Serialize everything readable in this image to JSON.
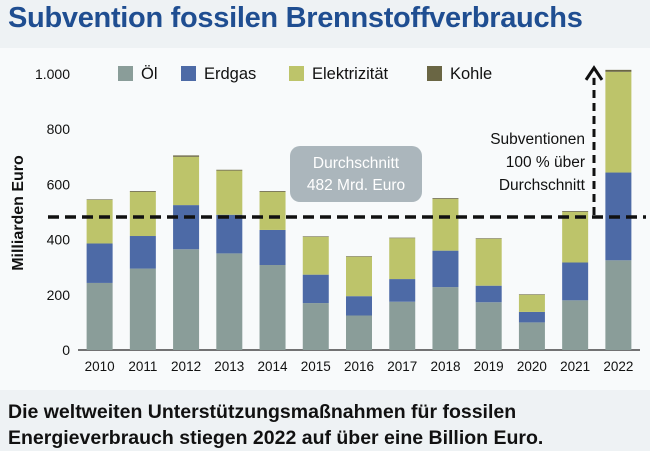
{
  "title": "Subvention fossilen Brennstoffverbrauchs",
  "caption": {
    "line1": "Die weltweiten Unterstützungsmaßnahmen für fossilen",
    "line2": "Energieverbrauch stiegen 2022 auf über eine Billion Euro."
  },
  "chart_data": {
    "type": "bar",
    "stacked": true,
    "ylabel": "Milliarden Euro",
    "ylim": [
      0,
      1000
    ],
    "yticks": [
      0,
      200,
      400,
      600,
      800,
      1000
    ],
    "ytick_labels": [
      "0",
      "200",
      "400",
      "600",
      "800",
      "1.000"
    ],
    "categories": [
      "2010",
      "2011",
      "2012",
      "2013",
      "2014",
      "2015",
      "2016",
      "2017",
      "2018",
      "2019",
      "2020",
      "2021",
      "2022"
    ],
    "series": [
      {
        "name": "Öl",
        "color": "#8a9d99",
        "values": [
          243,
          295,
          365,
          350,
          308,
          170,
          125,
          175,
          228,
          173,
          100,
          180,
          325
        ]
      },
      {
        "name": "Erdgas",
        "color": "#4d6aa6",
        "values": [
          143,
          118,
          160,
          140,
          127,
          103,
          70,
          82,
          132,
          60,
          38,
          137,
          318
        ]
      },
      {
        "name": "Elektrizität",
        "color": "#bdc46a",
        "values": [
          158,
          160,
          175,
          160,
          138,
          137,
          143,
          148,
          187,
          170,
          62,
          183,
          365
        ]
      },
      {
        "name": "Kohle",
        "color": "#6a6644",
        "values": [
          2,
          3,
          5,
          3,
          3,
          2,
          2,
          2,
          3,
          2,
          2,
          3,
          7
        ]
      }
    ],
    "legend_position": "top",
    "average_line": {
      "value": 482
    },
    "annotations": [
      {
        "id": "avg",
        "lines": [
          "Durchschnitt",
          "482 Mrd. Euro"
        ]
      },
      {
        "id": "above",
        "lines": [
          "Subventionen",
          "100 % über",
          "Durchschnitt"
        ]
      }
    ]
  }
}
